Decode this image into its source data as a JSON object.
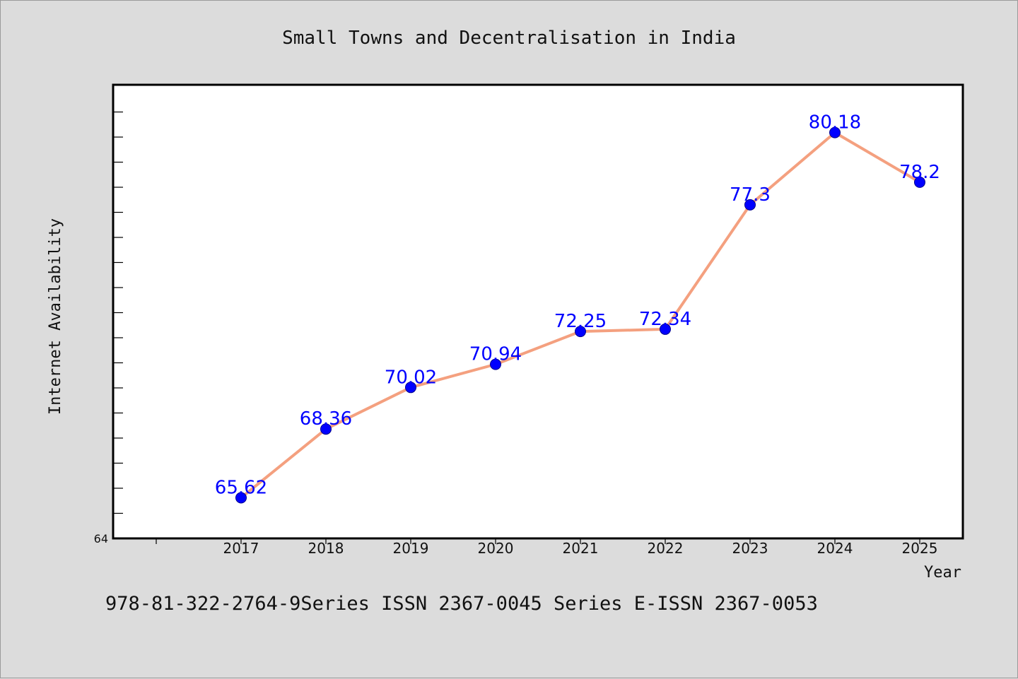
{
  "chart_data": {
    "type": "line",
    "title": "Small Towns and Decentralisation in India",
    "xlabel": "Year",
    "ylabel": "Internet Availability",
    "categories": [
      "2017",
      "2018",
      "2019",
      "2020",
      "2021",
      "2022",
      "2023",
      "2024",
      "2025"
    ],
    "series": [
      {
        "values": [
          65.62,
          68.36,
          70.02,
          70.94,
          72.25,
          72.34,
          77.3,
          80.18,
          78.2
        ],
        "labels": [
          "65.62",
          "68.36",
          "70.02",
          "70.94",
          "72.25",
          "72.34",
          "77.3",
          "80.18",
          "78.2"
        ],
        "line_color": "#f4a07f",
        "marker_color": "#0000ff"
      }
    ],
    "ylim": [
      64,
      82.1
    ],
    "ymin_label": "64",
    "y_minor_tick_step": 1,
    "grid": false,
    "legend": "none"
  },
  "footer": {
    "text": "978-81-322-2764-9Series ISSN 2367-0045 Series E-ISSN 2367-0053"
  }
}
